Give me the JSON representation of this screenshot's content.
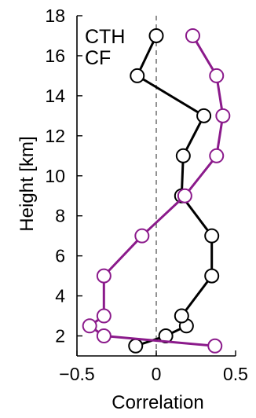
{
  "chart_data": {
    "type": "line",
    "xlabel": "Correlation",
    "ylabel": "Height [km]",
    "xlim": [
      -0.5,
      0.5
    ],
    "ylim": [
      1,
      18
    ],
    "xticks": [
      -0.5,
      0,
      0.5
    ],
    "xtick_labels": [
      "−0.5",
      "0",
      "0.5"
    ],
    "yticks": [
      2,
      4,
      6,
      8,
      10,
      12,
      14,
      16,
      18
    ],
    "ytick_labels": [
      "2",
      "4",
      "6",
      "8",
      "10",
      "12",
      "14",
      "16",
      "18"
    ],
    "grid": false,
    "legend_position": "top-left",
    "zero_line": {
      "x": 0,
      "style": "dashed",
      "color": "#777777"
    },
    "series": [
      {
        "name": "CTH",
        "color": "#000000",
        "marker": "open-circle",
        "points": [
          {
            "y": 1.5,
            "x": -0.13
          },
          {
            "y": 2.0,
            "x": 0.06
          },
          {
            "y": 2.5,
            "x": 0.19
          },
          {
            "y": 3.0,
            "x": 0.16
          },
          {
            "y": 5.0,
            "x": 0.35
          },
          {
            "y": 7.0,
            "x": 0.35
          },
          {
            "y": 9.0,
            "x": 0.16
          },
          {
            "y": 11.0,
            "x": 0.17
          },
          {
            "y": 13.0,
            "x": 0.3
          },
          {
            "y": 15.0,
            "x": -0.12
          },
          {
            "y": 17.0,
            "x": 0.0
          }
        ]
      },
      {
        "name": "CF",
        "color": "#8b1a8b",
        "marker": "open-circle",
        "points": [
          {
            "y": 1.5,
            "x": 0.37
          },
          {
            "y": 2.0,
            "x": -0.33
          },
          {
            "y": 2.5,
            "x": -0.42
          },
          {
            "y": 3.0,
            "x": -0.33
          },
          {
            "y": 5.0,
            "x": -0.33
          },
          {
            "y": 7.0,
            "x": -0.09
          },
          {
            "y": 9.0,
            "x": 0.18
          },
          {
            "y": 11.0,
            "x": 0.38
          },
          {
            "y": 13.0,
            "x": 0.42
          },
          {
            "y": 15.0,
            "x": 0.38
          },
          {
            "y": 17.0,
            "x": 0.23
          }
        ]
      }
    ]
  }
}
